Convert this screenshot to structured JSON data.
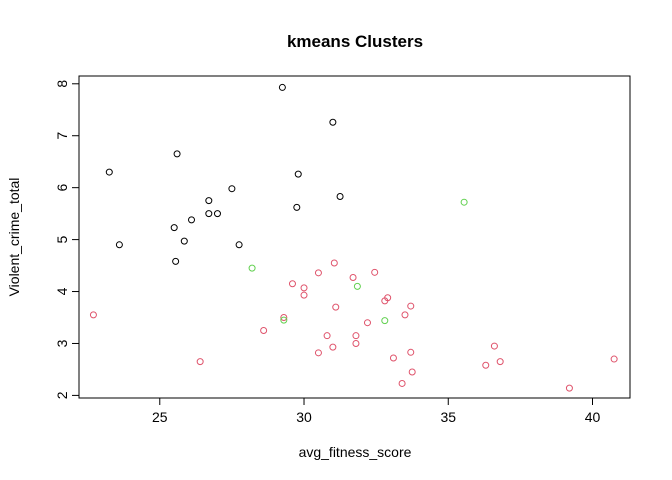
{
  "chart_data": {
    "type": "scatter",
    "title": "kmeans Clusters",
    "xlabel": "avg_fitness_score",
    "ylabel": "Violent_crime_total",
    "xlim": [
      22.2,
      41.3
    ],
    "ylim": [
      1.95,
      8.15
    ],
    "xticks": [
      25,
      30,
      35,
      40
    ],
    "xtick_labels": [
      "25",
      "30",
      "35",
      "40"
    ],
    "yticks": [
      2,
      3,
      4,
      5,
      6,
      7,
      8
    ],
    "ytick_labels": [
      "2",
      "3",
      "4",
      "5",
      "6",
      "7",
      "8"
    ],
    "grid": false,
    "legend": "none",
    "series": [
      {
        "color": "#000000",
        "points": [
          [
            29.25,
            7.93
          ],
          [
            31.0,
            7.26
          ],
          [
            25.6,
            6.65
          ],
          [
            23.25,
            6.3
          ],
          [
            29.8,
            6.26
          ],
          [
            27.5,
            5.98
          ],
          [
            31.25,
            5.83
          ],
          [
            26.7,
            5.75
          ],
          [
            29.75,
            5.62
          ],
          [
            26.7,
            5.5
          ],
          [
            27.0,
            5.5
          ],
          [
            26.1,
            5.38
          ],
          [
            25.5,
            5.23
          ],
          [
            25.85,
            4.97
          ],
          [
            23.6,
            4.9
          ],
          [
            27.75,
            4.9
          ],
          [
            25.55,
            4.58
          ]
        ]
      },
      {
        "color": "#DF536B",
        "points": [
          [
            22.7,
            3.55
          ],
          [
            26.4,
            2.65
          ],
          [
            28.6,
            3.25
          ],
          [
            29.3,
            3.5
          ],
          [
            29.6,
            4.15
          ],
          [
            30.0,
            4.07
          ],
          [
            30.0,
            3.93
          ],
          [
            30.5,
            4.36
          ],
          [
            30.5,
            2.82
          ],
          [
            30.8,
            3.15
          ],
          [
            31.0,
            2.93
          ],
          [
            31.05,
            4.55
          ],
          [
            31.1,
            3.7
          ],
          [
            31.7,
            4.27
          ],
          [
            31.8,
            3.15
          ],
          [
            31.8,
            3.0
          ],
          [
            32.2,
            3.4
          ],
          [
            32.45,
            4.37
          ],
          [
            32.8,
            3.82
          ],
          [
            32.9,
            3.88
          ],
          [
            33.1,
            2.72
          ],
          [
            33.4,
            2.23
          ],
          [
            33.5,
            3.55
          ],
          [
            33.7,
            3.72
          ],
          [
            33.7,
            2.83
          ],
          [
            33.75,
            2.45
          ],
          [
            36.3,
            2.58
          ],
          [
            36.6,
            2.95
          ],
          [
            36.8,
            2.65
          ],
          [
            39.2,
            2.14
          ],
          [
            40.75,
            2.7
          ]
        ]
      },
      {
        "color": "#61D04F",
        "points": [
          [
            28.2,
            4.45
          ],
          [
            29.3,
            3.45
          ],
          [
            31.85,
            4.1
          ],
          [
            32.8,
            3.44
          ],
          [
            35.55,
            5.72
          ]
        ]
      }
    ]
  }
}
